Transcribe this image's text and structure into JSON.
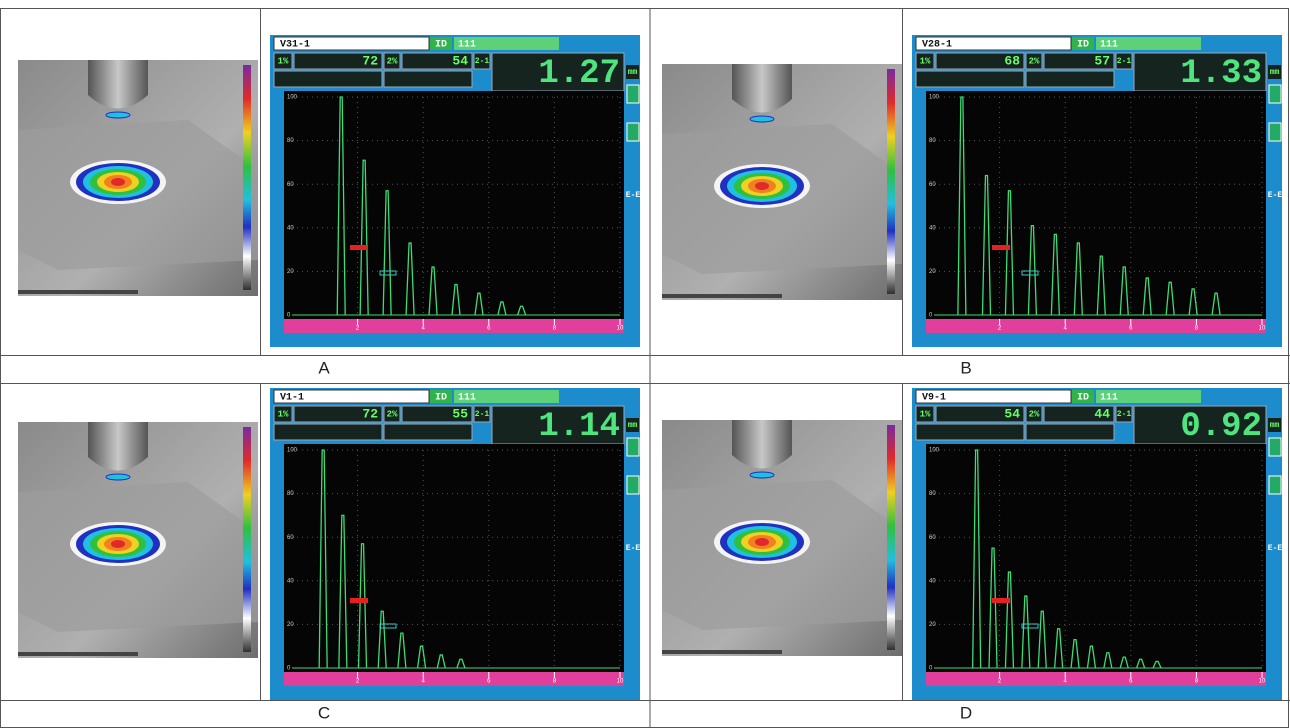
{
  "panels": [
    {
      "label": "A",
      "screen": {
        "file": "V31-1",
        "id_label": "ID",
        "id_value": "111",
        "gate1": {
          "label": "1%",
          "value": 72
        },
        "gate2": {
          "label": "2%",
          "value": 54
        },
        "mode": "2-1",
        "reading": "1.27",
        "unit": "mm",
        "mode2": "E-E",
        "color": "#3ddc74",
        "ylim": [
          0,
          100
        ],
        "yticks": [
          0,
          20,
          40,
          60,
          80,
          100
        ],
        "xlim": [
          0,
          10
        ],
        "xticks": [
          2,
          4,
          6,
          8,
          10
        ],
        "echoes": {
          "x": [
            1.5,
            2.2,
            2.9,
            3.6,
            4.3,
            5.0,
            5.7,
            6.4,
            7.0
          ],
          "y": [
            100,
            71,
            57,
            33,
            22,
            14,
            10,
            6,
            4
          ]
        }
      }
    },
    {
      "label": "B",
      "screen": {
        "file": "V28-1",
        "id_label": "ID",
        "id_value": "111",
        "gate1": {
          "label": "1%",
          "value": 68
        },
        "gate2": {
          "label": "2%",
          "value": 57
        },
        "mode": "2-1",
        "reading": "1.33",
        "unit": "mm",
        "mode2": "E-E",
        "color": "#3ddc74",
        "ylim": [
          0,
          100
        ],
        "yticks": [
          0,
          20,
          40,
          60,
          80,
          100
        ],
        "xlim": [
          0,
          10
        ],
        "xticks": [
          2,
          4,
          6,
          8,
          10
        ],
        "echoes": {
          "x": [
            0.85,
            1.6,
            2.3,
            3.0,
            3.7,
            4.4,
            5.1,
            5.8,
            6.5,
            7.2,
            7.9,
            8.6
          ],
          "y": [
            100,
            64,
            57,
            41,
            37,
            33,
            27,
            22,
            17,
            15,
            12,
            10
          ]
        }
      }
    },
    {
      "label": "C",
      "screen": {
        "file": "V1-1",
        "id_label": "ID",
        "id_value": "111",
        "gate1": {
          "label": "1%",
          "value": 72
        },
        "gate2": {
          "label": "2%",
          "value": 55
        },
        "mode": "2-1",
        "reading": "1.14",
        "unit": "mm",
        "mode2": "E-E",
        "color": "#3ddc74",
        "ylim": [
          0,
          100
        ],
        "yticks": [
          0,
          20,
          40,
          60,
          80,
          100
        ],
        "xlim": [
          0,
          10
        ],
        "xticks": [
          2,
          4,
          6,
          8,
          10
        ],
        "echoes": {
          "x": [
            0.95,
            1.55,
            2.15,
            2.75,
            3.35,
            3.95,
            4.55,
            5.15
          ],
          "y": [
            100,
            70,
            57,
            26,
            16,
            10,
            6,
            4
          ]
        }
      }
    },
    {
      "label": "D",
      "screen": {
        "file": "V9-1",
        "id_label": "ID",
        "id_value": "111",
        "gate1": {
          "label": "1%",
          "value": 54
        },
        "gate2": {
          "label": "2%",
          "value": 44
        },
        "mode": "2-1",
        "reading": "0.92",
        "unit": "mm",
        "mode2": "E-E",
        "color": "#3ddc74",
        "ylim": [
          0,
          100
        ],
        "yticks": [
          0,
          20,
          40,
          60,
          80,
          100
        ],
        "xlim": [
          0,
          10
        ],
        "xticks": [
          2,
          4,
          6,
          8,
          10
        ],
        "echoes": {
          "x": [
            1.3,
            1.8,
            2.3,
            2.8,
            3.3,
            3.8,
            4.3,
            4.8,
            5.3,
            5.8,
            6.3,
            6.8
          ],
          "y": [
            100,
            55,
            44,
            33,
            26,
            18,
            13,
            10,
            7,
            5,
            4,
            3
          ]
        }
      }
    }
  ]
}
